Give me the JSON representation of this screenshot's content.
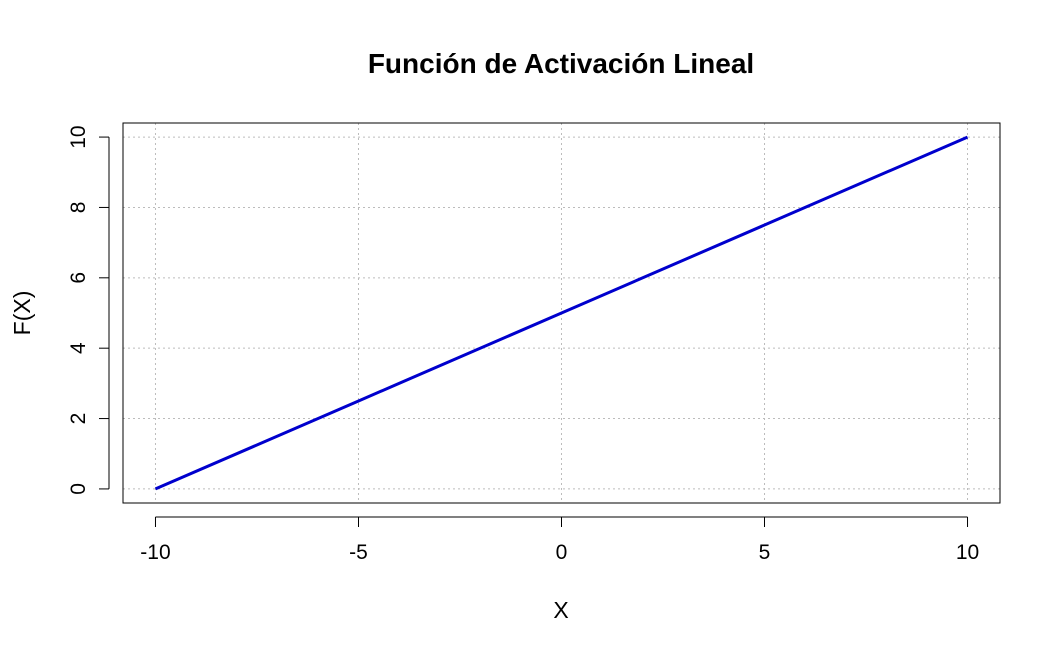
{
  "chart_data": {
    "type": "line",
    "title": "Función de Activación Lineal",
    "xlabel": "X",
    "ylabel": "F(X)",
    "xlim": [
      -10.8,
      10.8
    ],
    "ylim": [
      -0.4,
      10.4
    ],
    "xticks": [
      -10,
      -5,
      0,
      5,
      10
    ],
    "yticks": [
      0,
      2,
      4,
      6,
      8,
      10
    ],
    "grid": true,
    "series": [
      {
        "color": "#0000CD",
        "x": [
          -10,
          -5,
          0,
          5,
          10
        ],
        "y": [
          0,
          2.5,
          5,
          7.5,
          10
        ]
      }
    ]
  }
}
